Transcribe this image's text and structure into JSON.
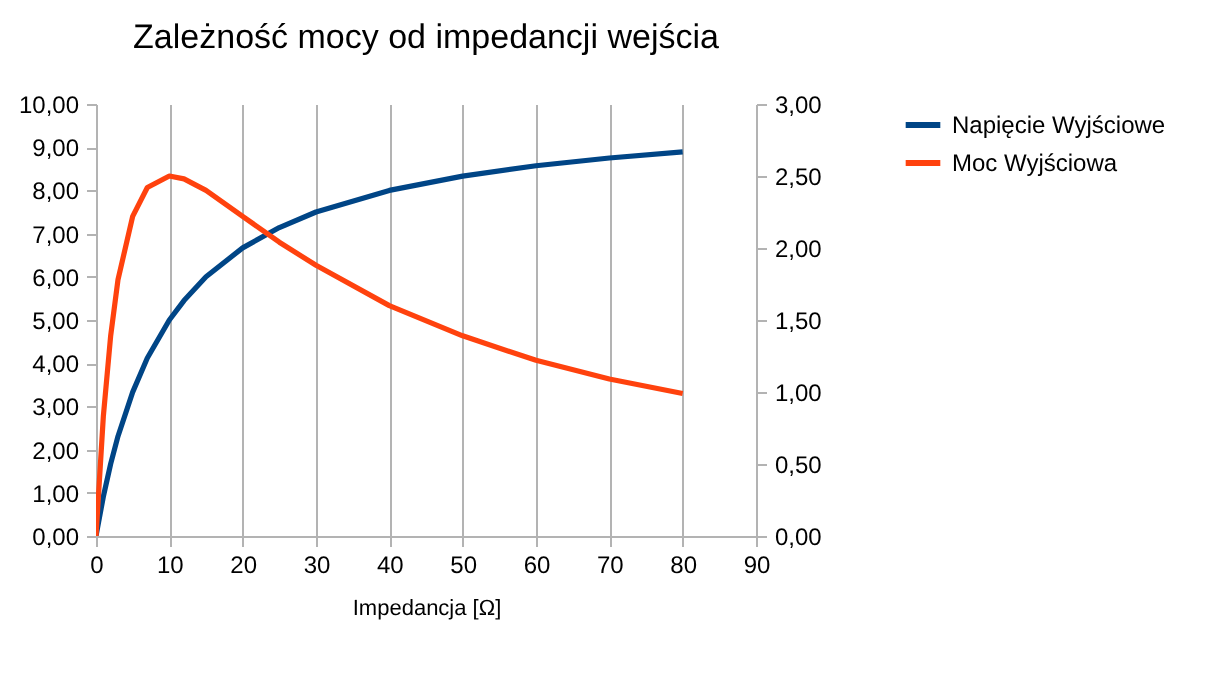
{
  "chart_data": {
    "type": "line",
    "title": "Zależność mocy od impedancji wejścia",
    "xlabel": "Impedancja [Ω]",
    "x": [
      0,
      1,
      2,
      3,
      5,
      7,
      10,
      12,
      15,
      20,
      25,
      30,
      40,
      50,
      60,
      70,
      80
    ],
    "series": [
      {
        "name": "Napięcie Wyjściowe",
        "color": "#004586",
        "values": [
          0,
          0.91,
          1.67,
          2.31,
          3.33,
          4.12,
          5.0,
          5.45,
          6.0,
          6.67,
          7.14,
          7.5,
          8.0,
          8.33,
          8.57,
          8.75,
          8.89
        ]
      },
      {
        "name": "Moc Wyjściowa",
        "color": "#ff420e",
        "axis": "y2",
        "values": [
          0,
          0.83,
          1.39,
          1.78,
          2.22,
          2.42,
          2.5,
          2.48,
          2.4,
          2.22,
          2.04,
          1.88,
          1.6,
          1.39,
          1.22,
          1.09,
          0.99
        ]
      }
    ],
    "xlim": [
      0,
      90
    ],
    "xticks": [
      0,
      10,
      20,
      30,
      40,
      50,
      60,
      70,
      80,
      90
    ],
    "ylim": [
      0,
      10
    ],
    "yticks": [
      {
        "value": 0,
        "label": "0,00"
      },
      {
        "value": 1,
        "label": "1,00"
      },
      {
        "value": 2,
        "label": "2,00"
      },
      {
        "value": 3,
        "label": "3,00"
      },
      {
        "value": 4,
        "label": "4,00"
      },
      {
        "value": 5,
        "label": "5,00"
      },
      {
        "value": 6,
        "label": "6,00"
      },
      {
        "value": 7,
        "label": "7,00"
      },
      {
        "value": 8,
        "label": "8,00"
      },
      {
        "value": 9,
        "label": "9,00"
      },
      {
        "value": 10,
        "label": "10,00"
      }
    ],
    "y2lim": [
      0,
      3
    ],
    "y2ticks": [
      {
        "value": 0,
        "label": "0,00"
      },
      {
        "value": 0.5,
        "label": "0,50"
      },
      {
        "value": 1,
        "label": "1,00"
      },
      {
        "value": 1.5,
        "label": "1,50"
      },
      {
        "value": 2,
        "label": "2,00"
      },
      {
        "value": 2.5,
        "label": "2,50"
      },
      {
        "value": 3,
        "label": "3,00"
      }
    ],
    "grid": "x",
    "legend": "right",
    "marker": "none",
    "line_style": "solid"
  }
}
